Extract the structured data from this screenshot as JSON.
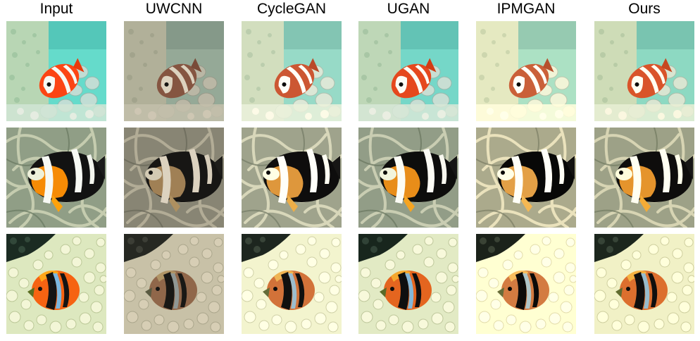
{
  "columns": [
    "Input",
    "UWCNN",
    "CycleGAN",
    "UGAN",
    "IPMGAN",
    "Ours"
  ],
  "rows": [
    "clownfish-coral-turquoise",
    "clownfish-anemone-tentacles",
    "clownfish-anemone-bulbs"
  ],
  "column_filters": {
    "Input": {
      "saturate": 1.15,
      "brightness": 1.02,
      "contrast": 1.0,
      "sepia": 0.0,
      "hue": 0
    },
    "UWCNN": {
      "saturate": 0.55,
      "brightness": 0.82,
      "contrast": 0.95,
      "sepia": 0.35,
      "hue": 0
    },
    "CycleGAN": {
      "saturate": 0.85,
      "brightness": 1.02,
      "contrast": 1.05,
      "sepia": 0.2,
      "hue": 0
    },
    "UGAN": {
      "saturate": 1.0,
      "brightness": 1.0,
      "contrast": 1.05,
      "sepia": 0.05,
      "hue": 0
    },
    "IPMGAN": {
      "saturate": 0.95,
      "brightness": 1.02,
      "contrast": 1.1,
      "sepia": 0.4,
      "hue": 0
    },
    "Ours": {
      "saturate": 1.05,
      "brightness": 1.0,
      "contrast": 1.05,
      "sepia": 0.25,
      "hue": 0
    }
  },
  "colors": {
    "row1_water": "#6fd3c6",
    "row1_coral": "#bfd6b9",
    "row1_fish_orange": "#e4481e",
    "row2_background": "#8e9a86",
    "row2_fish_black": "#121212",
    "row2_fish_orange": "#e58a18",
    "row3_anemone": "#e8eccb",
    "row3_dark": "#1c2a22",
    "row3_fish_orange": "#e2641f",
    "stripe_white": "#f2f4f0"
  }
}
